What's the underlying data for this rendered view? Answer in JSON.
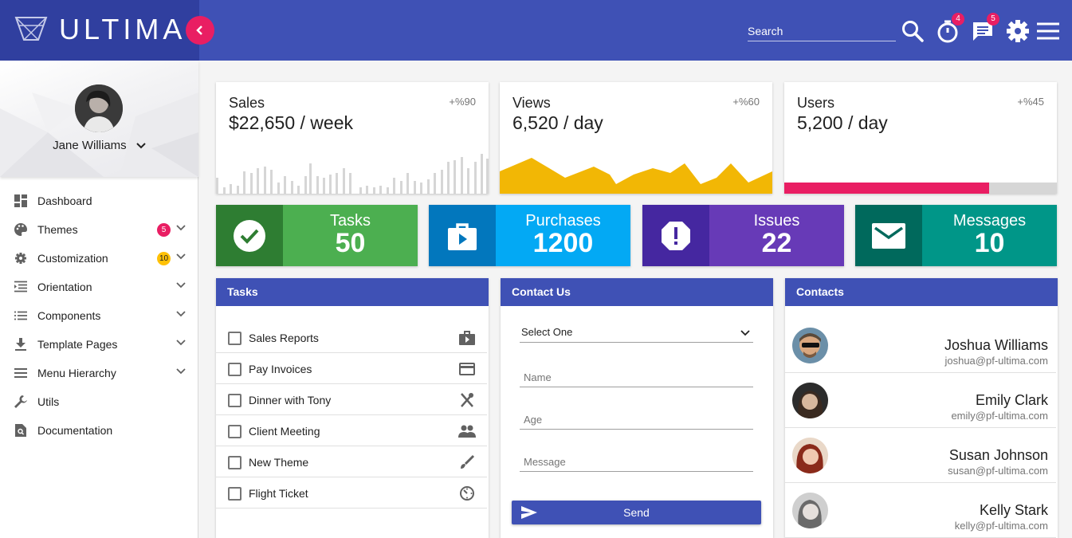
{
  "app": {
    "name": "ULTIMA"
  },
  "topbar": {
    "search_placeholder": "Search",
    "timer_badge": "4",
    "messages_badge": "5",
    "icons": [
      "search-icon",
      "timer-icon",
      "message-icon",
      "gear-icon",
      "hamburger-menu-icon"
    ],
    "color": "#3f51b5",
    "accent": "#e91e63"
  },
  "profile": {
    "name": "Jane Williams"
  },
  "sidebar": {
    "items": [
      {
        "label": "Dashboard",
        "icon": "dashboard-icon"
      },
      {
        "label": "Themes",
        "icon": "palette-icon",
        "badge": "5",
        "badge_color": "#e91e63",
        "expandable": true
      },
      {
        "label": "Customization",
        "icon": "gear-icon",
        "badge": "10",
        "badge_color": "#ffc107",
        "expandable": true
      },
      {
        "label": "Orientation",
        "icon": "orientation-icon",
        "expandable": true
      },
      {
        "label": "Components",
        "icon": "list-icon",
        "expandable": true
      },
      {
        "label": "Template Pages",
        "icon": "download-icon",
        "expandable": true
      },
      {
        "label": "Menu Hierarchy",
        "icon": "menu-icon",
        "expandable": true
      },
      {
        "label": "Utils",
        "icon": "wrench-icon"
      },
      {
        "label": "Documentation",
        "icon": "search-doc-icon"
      }
    ]
  },
  "stats": [
    {
      "title": "Sales",
      "value": "$22,650 / week",
      "change": "+%90"
    },
    {
      "title": "Views",
      "value": "6,520 / day",
      "change": "+%60"
    },
    {
      "title": "Users",
      "value": "5,200 / day",
      "change": "+%45",
      "progress": 0.75
    }
  ],
  "tiles": [
    {
      "label": "Tasks",
      "value": "50",
      "icon": "check-circle-icon"
    },
    {
      "label": "Purchases",
      "value": "1200",
      "icon": "shopping-bag-icon"
    },
    {
      "label": "Issues",
      "value": "22",
      "icon": "alert-octagon-icon"
    },
    {
      "label": "Messages",
      "value": "10",
      "icon": "mail-icon"
    }
  ],
  "tasks": {
    "title": "Tasks",
    "items": [
      {
        "label": "Sales Reports",
        "icon": "video-bag-icon"
      },
      {
        "label": "Pay Invoices",
        "icon": "credit-card-icon"
      },
      {
        "label": "Dinner with Tony",
        "icon": "cutlery-icon"
      },
      {
        "label": "Client Meeting",
        "icon": "people-icon"
      },
      {
        "label": "New Theme",
        "icon": "brush-icon"
      },
      {
        "label": "Flight Ticket",
        "icon": "timer-icon"
      }
    ]
  },
  "contact_form": {
    "title": "Contact Us",
    "select_value": "Select One",
    "name_placeholder": "Name",
    "age_placeholder": "Age",
    "message_placeholder": "Message",
    "send_label": "Send"
  },
  "contacts": {
    "title": "Contacts",
    "items": [
      {
        "name": "Joshua Williams",
        "email": "joshua@pf-ultima.com"
      },
      {
        "name": "Emily Clark",
        "email": "emily@pf-ultima.com"
      },
      {
        "name": "Susan Johnson",
        "email": "susan@pf-ultima.com"
      },
      {
        "name": "Kelly Stark",
        "email": "kelly@pf-ultima.com"
      }
    ]
  }
}
